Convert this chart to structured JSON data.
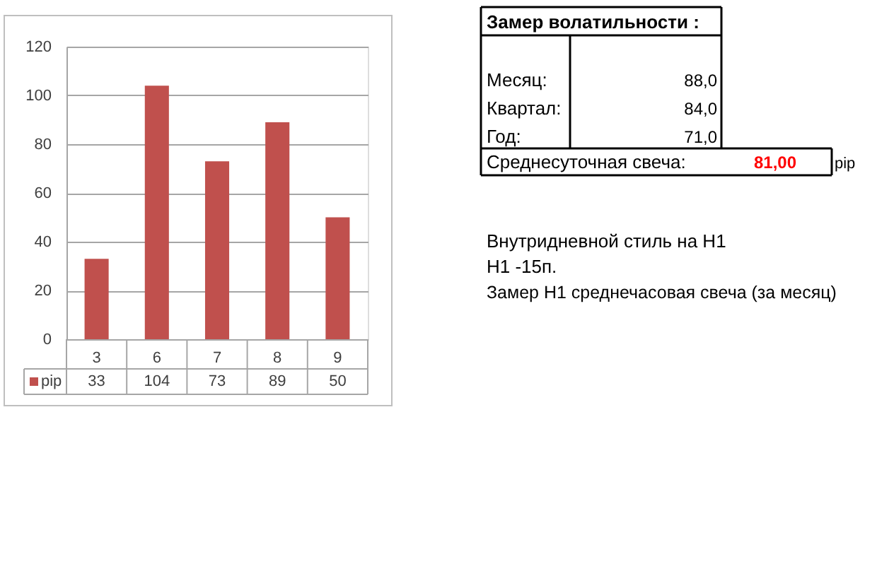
{
  "chart_data": {
    "type": "bar",
    "categories": [
      "3",
      "6",
      "7",
      "8",
      "9"
    ],
    "series": [
      {
        "name": "pip",
        "color": "#c0504d",
        "values": [
          33,
          104,
          73,
          89,
          50
        ]
      }
    ],
    "ylim": [
      0,
      120
    ],
    "yticks": [
      0,
      20,
      40,
      60,
      80,
      100,
      120
    ],
    "grid": "y",
    "legend": "bottom left",
    "data_labels": true,
    "annotations": [
      "Замер  волатильности  :",
      "Месяц:",
      "88,0",
      "Квартал:",
      "84,0",
      "Год:",
      "71,0",
      "Среднесуточная свеча:",
      "81,00",
      "pip",
      "Внутридневной стиль на H1",
      "H1 -15п.",
      "Замер H1 среднечасовая свеча (за месяц)"
    ]
  }
}
